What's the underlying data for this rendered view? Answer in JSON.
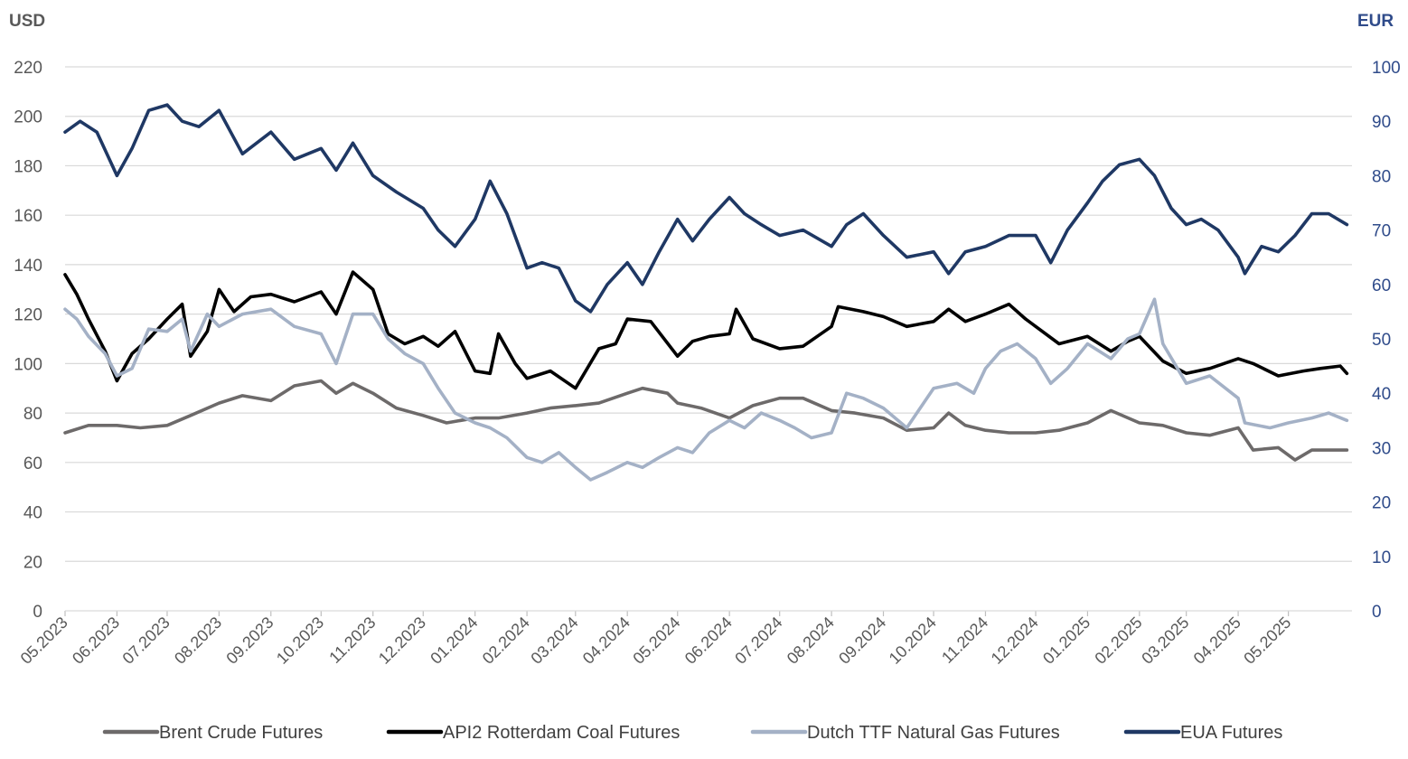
{
  "chart_data": {
    "type": "line",
    "left_axis": {
      "unit": "USD",
      "ylim": [
        0,
        220
      ],
      "ticks": [
        "0",
        "20",
        "40",
        "60",
        "80",
        "100",
        "120",
        "140",
        "160",
        "180",
        "200",
        "220"
      ]
    },
    "right_axis": {
      "unit": "EUR",
      "ylim": [
        0,
        100
      ],
      "ticks": [
        "0",
        "10",
        "20",
        "30",
        "40",
        "50",
        "60",
        "70",
        "80",
        "90",
        "100"
      ]
    },
    "x_axis": {
      "categories": [
        "05.2023",
        "06.2023",
        "07.2023",
        "08.2023",
        "09.2023",
        "10.2023",
        "11.2023",
        "12.2023",
        "01.2024",
        "02.2024",
        "03.2024",
        "04.2024",
        "05.2024",
        "06.2024",
        "07.2024",
        "08.2024",
        "09.2024",
        "10.2024",
        "11.2024",
        "12.2024",
        "01.2025",
        "02.2025",
        "03.2025",
        "04.2025",
        "05.2025"
      ]
    },
    "grid": true,
    "legend_position": "bottom",
    "series": [
      {
        "name": "Brent Crude Futures",
        "axis": "left",
        "color": "#6d6a6a",
        "points": [
          [
            "2023-05-01",
            72
          ],
          [
            "2023-05-15",
            75
          ],
          [
            "2023-06-01",
            75
          ],
          [
            "2023-06-15",
            74
          ],
          [
            "2023-07-01",
            75
          ],
          [
            "2023-07-15",
            79
          ],
          [
            "2023-08-01",
            84
          ],
          [
            "2023-08-15",
            87
          ],
          [
            "2023-09-01",
            85
          ],
          [
            "2023-09-15",
            91
          ],
          [
            "2023-10-01",
            93
          ],
          [
            "2023-10-10",
            88
          ],
          [
            "2023-10-20",
            92
          ],
          [
            "2023-11-01",
            88
          ],
          [
            "2023-11-15",
            82
          ],
          [
            "2023-12-01",
            79
          ],
          [
            "2023-12-15",
            76
          ],
          [
            "2024-01-01",
            78
          ],
          [
            "2024-01-15",
            78
          ],
          [
            "2024-02-01",
            80
          ],
          [
            "2024-02-15",
            82
          ],
          [
            "2024-03-01",
            83
          ],
          [
            "2024-03-15",
            84
          ],
          [
            "2024-04-01",
            88
          ],
          [
            "2024-04-10",
            90
          ],
          [
            "2024-04-25",
            88
          ],
          [
            "2024-05-01",
            84
          ],
          [
            "2024-05-15",
            82
          ],
          [
            "2024-06-01",
            78
          ],
          [
            "2024-06-15",
            83
          ],
          [
            "2024-07-01",
            86
          ],
          [
            "2024-07-15",
            86
          ],
          [
            "2024-08-01",
            81
          ],
          [
            "2024-08-15",
            80
          ],
          [
            "2024-09-01",
            78
          ],
          [
            "2024-09-15",
            73
          ],
          [
            "2024-10-01",
            74
          ],
          [
            "2024-10-10",
            80
          ],
          [
            "2024-10-20",
            75
          ],
          [
            "2024-11-01",
            73
          ],
          [
            "2024-11-15",
            72
          ],
          [
            "2024-12-01",
            72
          ],
          [
            "2024-12-15",
            73
          ],
          [
            "2025-01-01",
            76
          ],
          [
            "2025-01-15",
            81
          ],
          [
            "2025-02-01",
            76
          ],
          [
            "2025-02-15",
            75
          ],
          [
            "2025-03-01",
            72
          ],
          [
            "2025-03-15",
            71
          ],
          [
            "2025-04-01",
            74
          ],
          [
            "2025-04-10",
            65
          ],
          [
            "2025-04-25",
            66
          ],
          [
            "2025-05-05",
            61
          ],
          [
            "2025-05-15",
            65
          ],
          [
            "2025-06-05",
            65
          ]
        ]
      },
      {
        "name": "API2 Rotterdam Coal Futures",
        "axis": "left",
        "color": "#000000",
        "points": [
          [
            "2023-05-01",
            136
          ],
          [
            "2023-05-08",
            128
          ],
          [
            "2023-05-15",
            118
          ],
          [
            "2023-05-25",
            105
          ],
          [
            "2023-06-01",
            93
          ],
          [
            "2023-06-10",
            104
          ],
          [
            "2023-06-20",
            110
          ],
          [
            "2023-07-01",
            118
          ],
          [
            "2023-07-10",
            124
          ],
          [
            "2023-07-15",
            103
          ],
          [
            "2023-07-25",
            113
          ],
          [
            "2023-08-01",
            130
          ],
          [
            "2023-08-10",
            121
          ],
          [
            "2023-08-20",
            127
          ],
          [
            "2023-09-01",
            128
          ],
          [
            "2023-09-15",
            125
          ],
          [
            "2023-10-01",
            129
          ],
          [
            "2023-10-10",
            120
          ],
          [
            "2023-10-20",
            137
          ],
          [
            "2023-11-01",
            130
          ],
          [
            "2023-11-10",
            112
          ],
          [
            "2023-11-20",
            108
          ],
          [
            "2023-12-01",
            111
          ],
          [
            "2023-12-10",
            107
          ],
          [
            "2023-12-20",
            113
          ],
          [
            "2024-01-01",
            97
          ],
          [
            "2024-01-10",
            96
          ],
          [
            "2024-01-15",
            112
          ],
          [
            "2024-01-25",
            100
          ],
          [
            "2024-02-01",
            94
          ],
          [
            "2024-02-15",
            97
          ],
          [
            "2024-03-01",
            90
          ],
          [
            "2024-03-15",
            106
          ],
          [
            "2024-03-25",
            108
          ],
          [
            "2024-04-01",
            118
          ],
          [
            "2024-04-15",
            117
          ],
          [
            "2024-05-01",
            103
          ],
          [
            "2024-05-10",
            109
          ],
          [
            "2024-05-20",
            111
          ],
          [
            "2024-06-01",
            112
          ],
          [
            "2024-06-05",
            122
          ],
          [
            "2024-06-15",
            110
          ],
          [
            "2024-07-01",
            106
          ],
          [
            "2024-07-15",
            107
          ],
          [
            "2024-08-01",
            115
          ],
          [
            "2024-08-05",
            123
          ],
          [
            "2024-08-20",
            121
          ],
          [
            "2024-09-01",
            119
          ],
          [
            "2024-09-15",
            115
          ],
          [
            "2024-10-01",
            117
          ],
          [
            "2024-10-10",
            122
          ],
          [
            "2024-10-20",
            117
          ],
          [
            "2024-11-01",
            120
          ],
          [
            "2024-11-15",
            124
          ],
          [
            "2024-11-25",
            118
          ],
          [
            "2024-12-01",
            115
          ],
          [
            "2024-12-15",
            108
          ],
          [
            "2025-01-01",
            111
          ],
          [
            "2025-01-15",
            105
          ],
          [
            "2025-01-25",
            109
          ],
          [
            "2025-02-01",
            111
          ],
          [
            "2025-02-15",
            101
          ],
          [
            "2025-03-01",
            96
          ],
          [
            "2025-03-15",
            98
          ],
          [
            "2025-04-01",
            102
          ],
          [
            "2025-04-10",
            100
          ],
          [
            "2025-04-25",
            95
          ],
          [
            "2025-05-10",
            97
          ],
          [
            "2025-05-20",
            98
          ],
          [
            "2025-06-01",
            99
          ],
          [
            "2025-06-05",
            96
          ]
        ]
      },
      {
        "name": "Dutch TTF Natural Gas Futures",
        "axis": "left",
        "color": "#a4b1c6",
        "points": [
          [
            "2023-05-01",
            122
          ],
          [
            "2023-05-08",
            118
          ],
          [
            "2023-05-15",
            111
          ],
          [
            "2023-05-25",
            104
          ],
          [
            "2023-06-01",
            95
          ],
          [
            "2023-06-10",
            98
          ],
          [
            "2023-06-20",
            114
          ],
          [
            "2023-07-01",
            113
          ],
          [
            "2023-07-10",
            118
          ],
          [
            "2023-07-15",
            105
          ],
          [
            "2023-07-25",
            120
          ],
          [
            "2023-08-01",
            115
          ],
          [
            "2023-08-15",
            120
          ],
          [
            "2023-09-01",
            122
          ],
          [
            "2023-09-15",
            115
          ],
          [
            "2023-10-01",
            112
          ],
          [
            "2023-10-10",
            100
          ],
          [
            "2023-10-20",
            120
          ],
          [
            "2023-11-01",
            120
          ],
          [
            "2023-11-10",
            110
          ],
          [
            "2023-11-20",
            104
          ],
          [
            "2023-12-01",
            100
          ],
          [
            "2023-12-10",
            90
          ],
          [
            "2023-12-20",
            80
          ],
          [
            "2024-01-01",
            76
          ],
          [
            "2024-01-10",
            74
          ],
          [
            "2024-01-20",
            70
          ],
          [
            "2024-02-01",
            62
          ],
          [
            "2024-02-10",
            60
          ],
          [
            "2024-02-20",
            64
          ],
          [
            "2024-03-01",
            58
          ],
          [
            "2024-03-10",
            53
          ],
          [
            "2024-03-20",
            56
          ],
          [
            "2024-04-01",
            60
          ],
          [
            "2024-04-10",
            58
          ],
          [
            "2024-04-20",
            62
          ],
          [
            "2024-05-01",
            66
          ],
          [
            "2024-05-10",
            64
          ],
          [
            "2024-05-20",
            72
          ],
          [
            "2024-06-01",
            77
          ],
          [
            "2024-06-10",
            74
          ],
          [
            "2024-06-20",
            80
          ],
          [
            "2024-07-01",
            77
          ],
          [
            "2024-07-10",
            74
          ],
          [
            "2024-07-20",
            70
          ],
          [
            "2024-08-01",
            72
          ],
          [
            "2024-08-10",
            88
          ],
          [
            "2024-08-20",
            86
          ],
          [
            "2024-09-01",
            82
          ],
          [
            "2024-09-15",
            74
          ],
          [
            "2024-10-01",
            90
          ],
          [
            "2024-10-15",
            92
          ],
          [
            "2024-10-25",
            88
          ],
          [
            "2024-11-01",
            98
          ],
          [
            "2024-11-10",
            105
          ],
          [
            "2024-11-20",
            108
          ],
          [
            "2024-12-01",
            102
          ],
          [
            "2024-12-10",
            92
          ],
          [
            "2024-12-20",
            98
          ],
          [
            "2025-01-01",
            108
          ],
          [
            "2025-01-15",
            102
          ],
          [
            "2025-01-25",
            110
          ],
          [
            "2025-02-01",
            112
          ],
          [
            "2025-02-10",
            126
          ],
          [
            "2025-02-15",
            108
          ],
          [
            "2025-03-01",
            92
          ],
          [
            "2025-03-15",
            95
          ],
          [
            "2025-04-01",
            86
          ],
          [
            "2025-04-05",
            76
          ],
          [
            "2025-04-20",
            74
          ],
          [
            "2025-05-01",
            76
          ],
          [
            "2025-05-15",
            78
          ],
          [
            "2025-05-25",
            80
          ],
          [
            "2025-06-05",
            77
          ]
        ]
      },
      {
        "name": "EUA Futures",
        "axis": "right",
        "color": "#1f3864",
        "points": [
          [
            "2023-05-01",
            88
          ],
          [
            "2023-05-10",
            90
          ],
          [
            "2023-05-20",
            88
          ],
          [
            "2023-06-01",
            80
          ],
          [
            "2023-06-10",
            85
          ],
          [
            "2023-06-20",
            92
          ],
          [
            "2023-07-01",
            93
          ],
          [
            "2023-07-10",
            90
          ],
          [
            "2023-07-20",
            89
          ],
          [
            "2023-08-01",
            92
          ],
          [
            "2023-08-15",
            84
          ],
          [
            "2023-09-01",
            88
          ],
          [
            "2023-09-15",
            83
          ],
          [
            "2023-10-01",
            85
          ],
          [
            "2023-10-10",
            81
          ],
          [
            "2023-10-20",
            86
          ],
          [
            "2023-11-01",
            80
          ],
          [
            "2023-11-15",
            77
          ],
          [
            "2023-12-01",
            74
          ],
          [
            "2023-12-10",
            70
          ],
          [
            "2023-12-20",
            67
          ],
          [
            "2024-01-01",
            72
          ],
          [
            "2024-01-10",
            79
          ],
          [
            "2024-01-20",
            73
          ],
          [
            "2024-02-01",
            63
          ],
          [
            "2024-02-10",
            64
          ],
          [
            "2024-02-20",
            63
          ],
          [
            "2024-03-01",
            57
          ],
          [
            "2024-03-10",
            55
          ],
          [
            "2024-03-20",
            60
          ],
          [
            "2024-04-01",
            64
          ],
          [
            "2024-04-10",
            60
          ],
          [
            "2024-04-20",
            66
          ],
          [
            "2024-05-01",
            72
          ],
          [
            "2024-05-10",
            68
          ],
          [
            "2024-05-20",
            72
          ],
          [
            "2024-06-01",
            76
          ],
          [
            "2024-06-10",
            73
          ],
          [
            "2024-06-20",
            71
          ],
          [
            "2024-07-01",
            69
          ],
          [
            "2024-07-15",
            70
          ],
          [
            "2024-08-01",
            67
          ],
          [
            "2024-08-10",
            71
          ],
          [
            "2024-08-20",
            73
          ],
          [
            "2024-09-01",
            69
          ],
          [
            "2024-09-15",
            65
          ],
          [
            "2024-10-01",
            66
          ],
          [
            "2024-10-10",
            62
          ],
          [
            "2024-10-20",
            66
          ],
          [
            "2024-11-01",
            67
          ],
          [
            "2024-11-15",
            69
          ],
          [
            "2024-12-01",
            69
          ],
          [
            "2024-12-10",
            64
          ],
          [
            "2024-12-20",
            70
          ],
          [
            "2025-01-01",
            75
          ],
          [
            "2025-01-10",
            79
          ],
          [
            "2025-01-20",
            82
          ],
          [
            "2025-02-01",
            83
          ],
          [
            "2025-02-10",
            80
          ],
          [
            "2025-02-20",
            74
          ],
          [
            "2025-03-01",
            71
          ],
          [
            "2025-03-10",
            72
          ],
          [
            "2025-03-20",
            70
          ],
          [
            "2025-04-01",
            65
          ],
          [
            "2025-04-05",
            62
          ],
          [
            "2025-04-15",
            67
          ],
          [
            "2025-04-25",
            66
          ],
          [
            "2025-05-05",
            69
          ],
          [
            "2025-05-15",
            73
          ],
          [
            "2025-05-25",
            73
          ],
          [
            "2025-06-05",
            71
          ]
        ]
      }
    ]
  }
}
